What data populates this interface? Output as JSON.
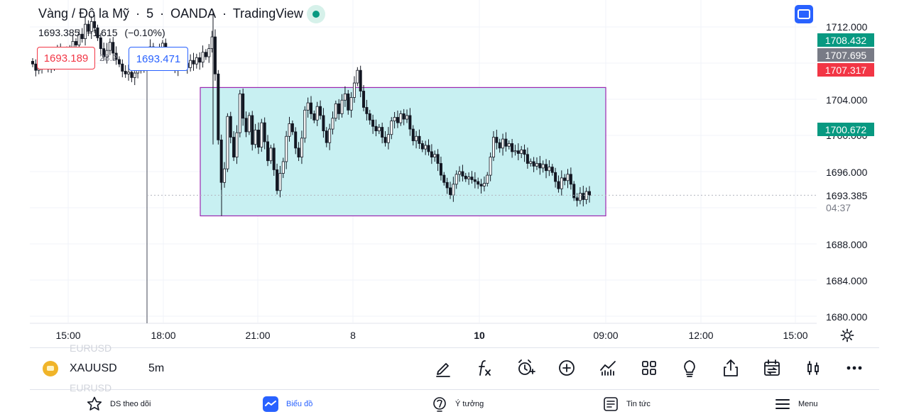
{
  "legend": {
    "title_parts": [
      "Vàng / Đô la Mỹ",
      "·",
      "5",
      "·",
      "OANDA",
      "·",
      "TradingView"
    ],
    "last_price": "1693.385",
    "change": "−1.615",
    "change_pct": "(−0.10%)"
  },
  "quote": {
    "bid": "1693.189",
    "spread": "28.2",
    "ask": "1693.471"
  },
  "price_axis": {
    "labels": [
      "1712.000",
      "1704.000",
      "1700.000",
      "1696.000",
      "1688.000",
      "1684.000",
      "1680.000"
    ],
    "tags": [
      {
        "text": "1708.432",
        "color": "#089981"
      },
      {
        "text": "1707.695",
        "color": "#787b86"
      },
      {
        "text": "1707.317",
        "color": "#f23645"
      },
      {
        "text": "1700.672",
        "color": "#089981"
      }
    ],
    "current_price": "1693.385",
    "countdown": "04:37"
  },
  "time_axis": {
    "labels": [
      {
        "text": "15:00",
        "bold": false
      },
      {
        "text": "18:00",
        "bold": false
      },
      {
        "text": "21:00",
        "bold": false
      },
      {
        "text": "8",
        "bold": false
      },
      {
        "text": "10",
        "bold": true
      },
      {
        "text": "09:00",
        "bold": false
      },
      {
        "text": "12:00",
        "bold": false
      },
      {
        "text": "15:00",
        "bold": false
      }
    ]
  },
  "drawing": {
    "type": "rectangle",
    "top_price": 1705.3,
    "bottom_price": 1691.1,
    "fill": "#c8f0f2",
    "border": "#9c27b0"
  },
  "toolbar": {
    "ghost_above": "EURUSD",
    "ghost_below": "EURUSD",
    "symbol": "XAUUSD",
    "interval": "5m",
    "tools": [
      "pencil-icon",
      "function-icon",
      "alert-icon",
      "add-icon",
      "indicators-icon",
      "layout-icon",
      "idea-icon",
      "share-icon",
      "compare-icon",
      "candle-type-icon",
      "more-icon"
    ]
  },
  "bottom_nav": {
    "items": [
      {
        "label": "DS theo dõi",
        "icon": "star-icon",
        "active": false
      },
      {
        "label": "Biểu đồ",
        "icon": "chart-icon",
        "active": true
      },
      {
        "label": "Ý tưởng",
        "icon": "bulb-icon",
        "active": false
      },
      {
        "label": "Tin tức",
        "icon": "news-icon",
        "active": false
      },
      {
        "label": "Menu",
        "icon": "menu-icon",
        "active": false
      }
    ]
  },
  "chart_data": {
    "type": "candlestick",
    "ylim": [
      1679,
      1714
    ],
    "grid": true,
    "close_path": [
      1707.9,
      1707.2,
      1707.6,
      1708.4,
      1708.9,
      1707.8,
      1707.5,
      1708.6,
      1709.5,
      1708.2,
      1708.8,
      1709.4,
      1709.0,
      1710.4,
      1710.0,
      1711.2,
      1710.7,
      1712.3,
      1711.5,
      1712.6,
      1711.9,
      1710.8,
      1709.6,
      1708.7,
      1709.4,
      1710.3,
      1709.1,
      1708.4,
      1707.9,
      1707.1,
      1706.8,
      1707.0,
      1706.4,
      1706.9,
      1707.2,
      1708.1,
      1707.6,
      1708.5,
      1709.8,
      1709.0,
      1708.6,
      1709.4,
      1710.2,
      1708.9,
      1708.3,
      1708.0,
      1707.4,
      1708.2,
      1708.7,
      1708.0,
      1707.5,
      1708.3,
      1707.9,
      1708.6,
      1708.1,
      1709.2,
      1708.7,
      1709.6,
      1710.9,
      1706.8,
      1699.5,
      1694.8,
      1696.3,
      1702.1,
      1699.8,
      1697.6,
      1700.3,
      1704.6,
      1701.9,
      1700.4,
      1702.2,
      1699.0,
      1700.6,
      1698.7,
      1701.4,
      1699.3,
      1697.2,
      1698.6,
      1696.2,
      1693.9,
      1695.8,
      1697.1,
      1699.9,
      1701.3,
      1700.4,
      1698.6,
      1697.6,
      1699.7,
      1702.8,
      1703.6,
      1702.4,
      1701.7,
      1703.2,
      1702.2,
      1700.5,
      1699.2,
      1700.7,
      1701.9,
      1703.5,
      1702.4,
      1703.9,
      1704.6,
      1702.8,
      1704.2,
      1705.8,
      1707.2,
      1704.9,
      1703.1,
      1702.4,
      1701.7,
      1701.0,
      1700.5,
      1700.9,
      1699.8,
      1699.2,
      1700.1,
      1701.6,
      1702.0,
      1701.4,
      1702.4,
      1701.8,
      1702.2,
      1700.7,
      1699.4,
      1699.9,
      1699.1,
      1698.5,
      1698.9,
      1698.2,
      1697.6,
      1697.9,
      1696.9,
      1695.6,
      1694.8,
      1694.2,
      1693.4,
      1694.6,
      1695.7,
      1696.0,
      1695.5,
      1695.2,
      1695.4,
      1695.1,
      1694.9,
      1694.6,
      1694.4,
      1694.7,
      1695.6,
      1697.6,
      1699.8,
      1699.2,
      1698.6,
      1699.6,
      1698.8,
      1699.1,
      1698.2,
      1698.3,
      1698.0,
      1698.4,
      1697.9,
      1696.9,
      1697.1,
      1696.6,
      1696.9,
      1696.4,
      1696.8,
      1696.1,
      1696.5,
      1695.9,
      1694.9,
      1694.1,
      1695.3,
      1695.0,
      1695.7,
      1694.6,
      1693.1,
      1692.8,
      1693.6,
      1692.9,
      1693.8,
      1693.4
    ]
  }
}
